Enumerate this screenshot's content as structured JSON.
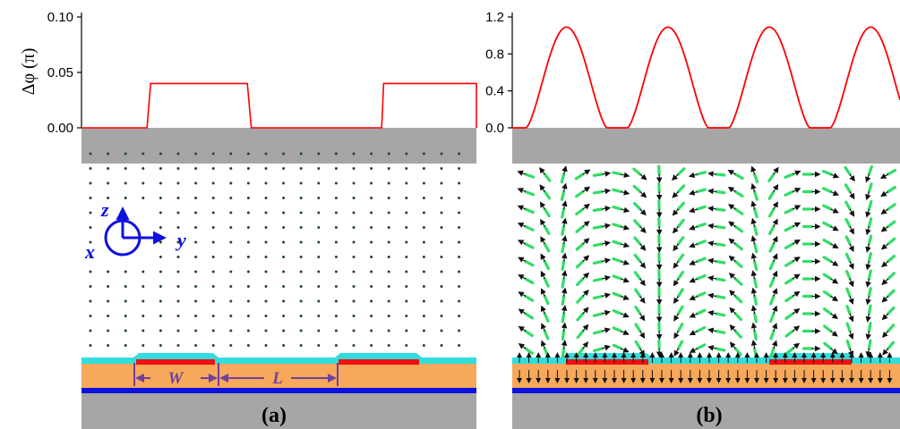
{
  "colors": {
    "plot_line": "#ff0000",
    "substrate": "#a6a6a6",
    "cap_layer": "#33dddd",
    "core_layer": "#f7a85a",
    "blue_layer": "#0a10e0",
    "red_strip": "#ee1111",
    "dot": "#1d4d1d",
    "arrow_black": "#111111",
    "arrow_green": "#33dd66",
    "axes_blue": "#1010e0",
    "dim_purple": "#7040a0"
  },
  "panel_a": {
    "label": "(a)",
    "y_title": "Δφ (π)",
    "chart_data": {
      "type": "line",
      "title": "",
      "xlabel": "",
      "ylabel": "Δφ (π)",
      "ylim": [
        0,
        0.1
      ],
      "yticks": [
        "0.00",
        "0.05",
        "0.10"
      ],
      "series": [
        {
          "x": [
            0,
            0.166,
            0.175,
            0.42,
            0.43,
            0.76,
            0.765,
            1.01,
            1.02,
            1.0
          ],
          "y": [
            0,
            0,
            0.04,
            0.04,
            0,
            0,
            0.04,
            0.04,
            0,
            0
          ]
        }
      ]
    },
    "coord_axes": {
      "z": "z",
      "y": "y",
      "x": "x"
    },
    "dims": {
      "w": "W",
      "l": "L"
    }
  },
  "panel_b": {
    "label": "(b)",
    "chart_data": {
      "type": "line",
      "title": "",
      "xlabel": "",
      "ylabel": "",
      "ylim": [
        0,
        1.2
      ],
      "yticks": [
        "0.0",
        "0.4",
        "0.8",
        "1.2"
      ],
      "periods": 4,
      "peak": 1.09
    }
  }
}
